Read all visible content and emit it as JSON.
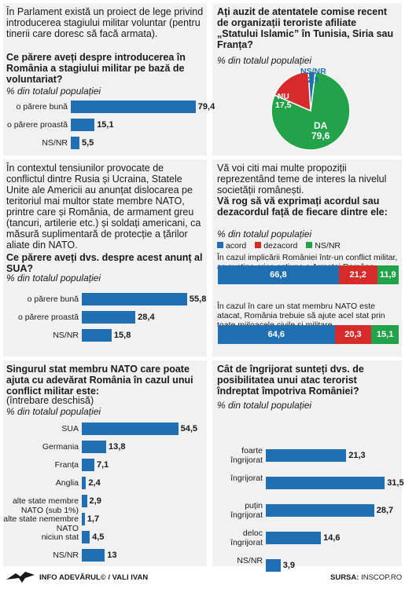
{
  "colors": {
    "blue": "#1f6fb2",
    "red": "#d72b2b",
    "green": "#22a34a",
    "panel": "#f1f1f1"
  },
  "p1": {
    "intro": "În Parlament există un proiect de lege privind introducerea stagiului militar voluntar (pentru tinerii care doresc să facă armata).",
    "question": "Ce părere aveți despre introducerea în România a stagiului militar pe bază de voluntariat?",
    "sub": "% din totalul populației"
  },
  "p2": {
    "question": "Ați auzit de atentatele comise recent de organizații teroriste afiliate „Statului Islamic” în Tunisia, Siria sau Franța?",
    "sub": "% din totalul populației",
    "labels": {
      "nsnr": "NS/NR",
      "nsnr_v": "2,9",
      "nu": "NU",
      "nu_v": "17,5",
      "da": "DA",
      "da_v": "79,6"
    }
  },
  "p3": {
    "intro": "În contextul tensiunilor provocate de conflictul dintre Rusia și Ucraina, Statele Unite ale Americii au anunțat dislocarea pe teritoriul mai multor state membre NATO, printre care și România, de armament greu (tancuri, artilerie etc.) și soldați americani, ca măsură suplimentară de protecție a țărilor aliate din NATO.",
    "question": "Ce părere aveți dvs. despre acest anunț al SUA?",
    "sub": "% din totalul populației"
  },
  "p4": {
    "intro": "Vă voi citi mai multe propoziții reprezentând teme de interes la nivelul societății românești.",
    "question": "Vă rog să vă exprimați acordul sau dezacordul față de fiecare dintre ele:",
    "sub": "% din totalul populației",
    "legend": [
      "acord",
      "dezacord",
      "NS/NR"
    ],
    "s1": "În cazul implicării României într-un conflict militar, aș susține orice acțiune a Armatei Române",
    "s2": "În cazul în care un stat membru NATO este atacat, România trebuie să ajute acel stat prin toate mijloacele civile și militare"
  },
  "p5": {
    "question": "Singurul stat membru NATO care poate ajuta cu adevărat România în cazul unui conflict militar este:",
    "note": "(întrebare deschisă)",
    "sub": "% din totalul populației"
  },
  "p6": {
    "question": "Cât de îngrijorat sunteți dvs. de posibilitatea unui atac terorist îndreptat împotriva României?",
    "sub": "% din totalul populației"
  },
  "footer": {
    "left": "INFO ADEVĂRUL© / VALI IVAN",
    "source_label": "SURSA:",
    "source": "INSCOP.RO"
  },
  "chart_data": [
    {
      "id": "c1",
      "type": "bar",
      "categories": [
        "o părere bună",
        "o părere proastă",
        "NS/NR"
      ],
      "values": [
        79.4,
        15.1,
        5.5
      ],
      "labels": [
        "79,4",
        "15,1",
        "5,5"
      ]
    },
    {
      "id": "c2",
      "type": "pie",
      "categories": [
        "DA",
        "NU",
        "NS/NR"
      ],
      "values": [
        79.6,
        17.5,
        2.9
      ],
      "colors": [
        "#22a34a",
        "#d72b2b",
        "#1f6fb2"
      ]
    },
    {
      "id": "c3",
      "type": "bar",
      "categories": [
        "o părere bună",
        "o părere proastă",
        "NS/NR"
      ],
      "values": [
        55.8,
        28.4,
        15.8
      ],
      "labels": [
        "55,8",
        "28,4",
        "15,8"
      ]
    },
    {
      "id": "c4",
      "type": "bar",
      "stacked": true,
      "categories": [
        "s1",
        "s2"
      ],
      "series": [
        {
          "name": "acord",
          "values": [
            66.8,
            64.6
          ],
          "labels": [
            "66,8",
            "64,6"
          ]
        },
        {
          "name": "dezacord",
          "values": [
            21.2,
            20.3
          ],
          "labels": [
            "21,2",
            "20,3"
          ]
        },
        {
          "name": "NS/NR",
          "values": [
            11.9,
            15.1
          ],
          "labels": [
            "11,9",
            "15,1"
          ]
        }
      ]
    },
    {
      "id": "c5",
      "type": "bar",
      "categories": [
        "SUA",
        "Germania",
        "Franța",
        "Anglia",
        "alte state membre NATO (sub 1%)",
        "alte state nemembre NATO",
        "niciun stat",
        "NS/NR"
      ],
      "values": [
        54.5,
        13.8,
        7.1,
        2.4,
        2.9,
        1.7,
        4.5,
        13
      ],
      "labels": [
        "54,5",
        "13,8",
        "7,1",
        "2,4",
        "2,9",
        "1,7",
        "4,5",
        "13"
      ]
    },
    {
      "id": "c6",
      "type": "bar",
      "categories": [
        "foarte îngrijorat",
        "îngrijorat",
        "puțin îngrijorat",
        "deloc îngrijorat",
        "NS/NR"
      ],
      "values": [
        21.3,
        31.5,
        28.7,
        14.6,
        3.9
      ],
      "labels": [
        "21,3",
        "31,5",
        "28,7",
        "14,6",
        "3,9"
      ]
    }
  ]
}
